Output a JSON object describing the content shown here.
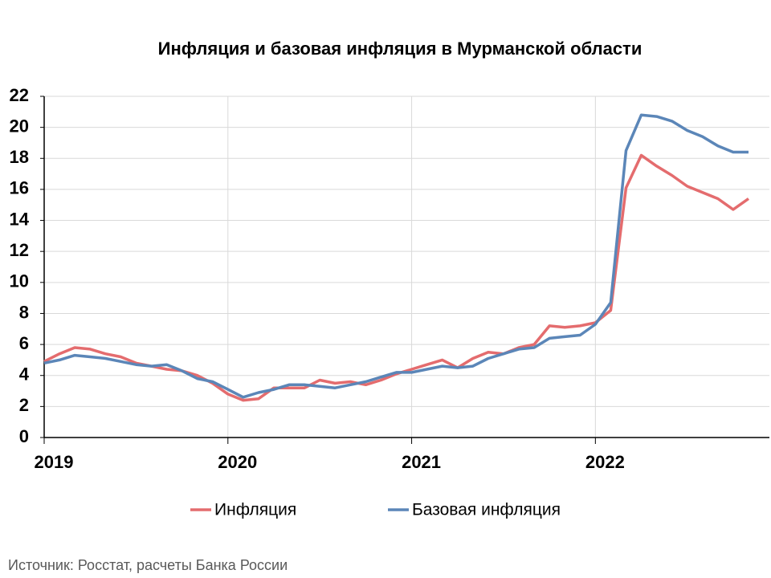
{
  "chart_data": {
    "type": "line",
    "title": "Инфляция и базовая инфляция в Мурманской области",
    "categories": [
      "2019",
      null,
      null,
      null,
      null,
      null,
      null,
      null,
      null,
      null,
      null,
      null,
      "2020",
      null,
      null,
      null,
      null,
      null,
      null,
      null,
      null,
      null,
      null,
      null,
      "2021",
      null,
      null,
      null,
      null,
      null,
      null,
      null,
      null,
      null,
      null,
      null,
      "2022",
      null,
      null,
      null,
      null,
      null,
      null,
      null,
      null,
      null,
      null
    ],
    "series": [
      {
        "name": "Инфляция",
        "color": "#e46c6e",
        "values": [
          4.9,
          5.4,
          5.8,
          5.7,
          5.4,
          5.2,
          4.8,
          4.6,
          4.4,
          4.3,
          4.0,
          3.5,
          2.8,
          2.4,
          2.5,
          3.2,
          3.2,
          3.2,
          3.7,
          3.5,
          3.6,
          3.4,
          3.7,
          4.1,
          4.4,
          4.7,
          5.0,
          4.5,
          5.1,
          5.5,
          5.4,
          5.8,
          6.0,
          7.2,
          7.1,
          7.2,
          7.4,
          8.2,
          16.1,
          18.2,
          17.5,
          16.9,
          16.2,
          15.8,
          15.4,
          14.7,
          15.4
        ]
      },
      {
        "name": "Базовая инфляция",
        "color": "#5b86b8",
        "values": [
          4.8,
          5.0,
          5.3,
          5.2,
          5.1,
          4.9,
          4.7,
          4.6,
          4.7,
          4.3,
          3.8,
          3.6,
          3.1,
          2.6,
          2.9,
          3.1,
          3.4,
          3.4,
          3.3,
          3.2,
          3.4,
          3.6,
          3.9,
          4.2,
          4.2,
          4.4,
          4.6,
          4.5,
          4.6,
          5.1,
          5.4,
          5.7,
          5.8,
          6.4,
          6.5,
          6.6,
          7.3,
          8.7,
          18.5,
          20.8,
          20.7,
          20.4,
          19.8,
          19.4,
          18.8,
          18.4,
          18.4
        ]
      }
    ],
    "ylim": [
      0,
      22
    ],
    "yticks": [
      0,
      2,
      4,
      6,
      8,
      10,
      12,
      14,
      16,
      18,
      20,
      22
    ],
    "grid": true,
    "legend": "bottom",
    "source": "Источник: Росстат, расчеты Банка России"
  }
}
